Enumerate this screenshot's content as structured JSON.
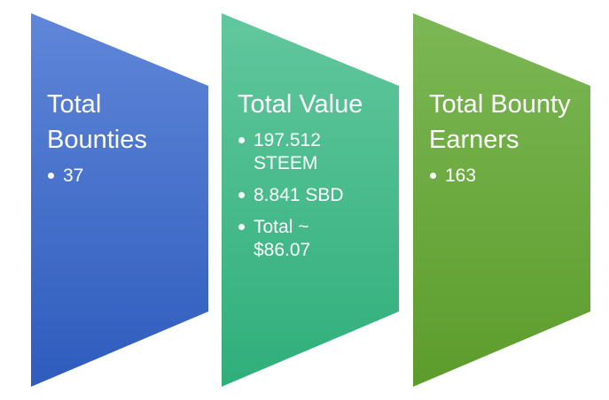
{
  "panels": [
    {
      "title": "Total Bounties",
      "items": [
        "37"
      ]
    },
    {
      "title": "Total Value",
      "items": [
        "197.512 STEEM",
        "8.841 SBD",
        "Total ~ $86.07"
      ]
    },
    {
      "title": "Total Bounty Earners",
      "items": [
        "163"
      ]
    }
  ]
}
